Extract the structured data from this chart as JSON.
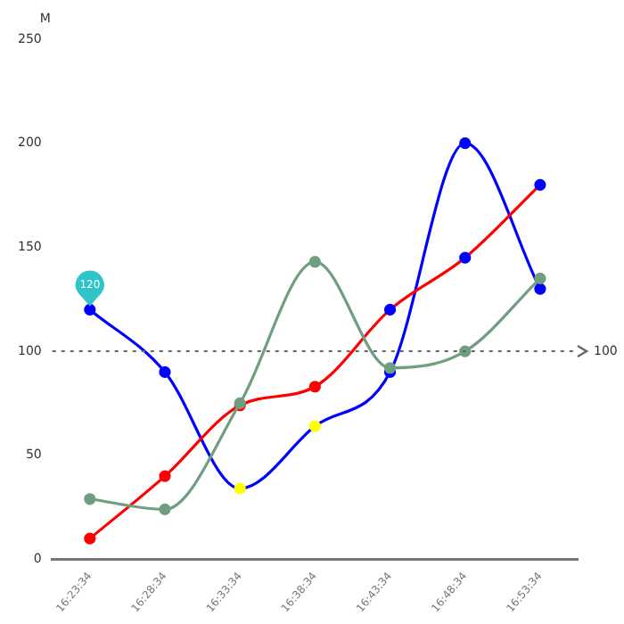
{
  "chart_data": {
    "type": "line",
    "ylabel": "M",
    "categories": [
      "16:23:34",
      "16:28:34",
      "16:33:34",
      "16:38:34",
      "16:43:34",
      "16:48:34",
      "16:53:34"
    ],
    "series": [
      {
        "color": "#0000ff",
        "colors": [
          "#0000ff",
          "#0000ff",
          "#ffff00",
          "#ffff00",
          "#0000ff",
          "#0000ff",
          "#0000ff"
        ],
        "values": [
          120,
          90,
          34,
          64,
          90,
          200,
          130
        ]
      },
      {
        "color": "#ff0000",
        "colors": [
          "#ff0000",
          "#ff0000",
          "#ff0000",
          "#ff0000",
          "#0000ff",
          "#0000ff",
          "#0000ff"
        ],
        "values": [
          10,
          40,
          74,
          83,
          120,
          145,
          180
        ]
      },
      {
        "color": "#6f9e80",
        "values": [
          29,
          24,
          75,
          143,
          92,
          100,
          135
        ]
      }
    ],
    "ylim": [
      0,
      250
    ],
    "yticks": [
      0,
      50,
      100,
      150,
      200,
      250
    ],
    "grid": false,
    "legend": false,
    "marker": "circle",
    "line_style": "solid",
    "ref_lines": [
      {
        "axis": "y",
        "value": 100,
        "label": "100",
        "color": "#666666",
        "line_style": "dotted"
      }
    ],
    "annotations": [
      {
        "text": "120",
        "x": "16:23:34",
        "y": 120
      }
    ]
  }
}
